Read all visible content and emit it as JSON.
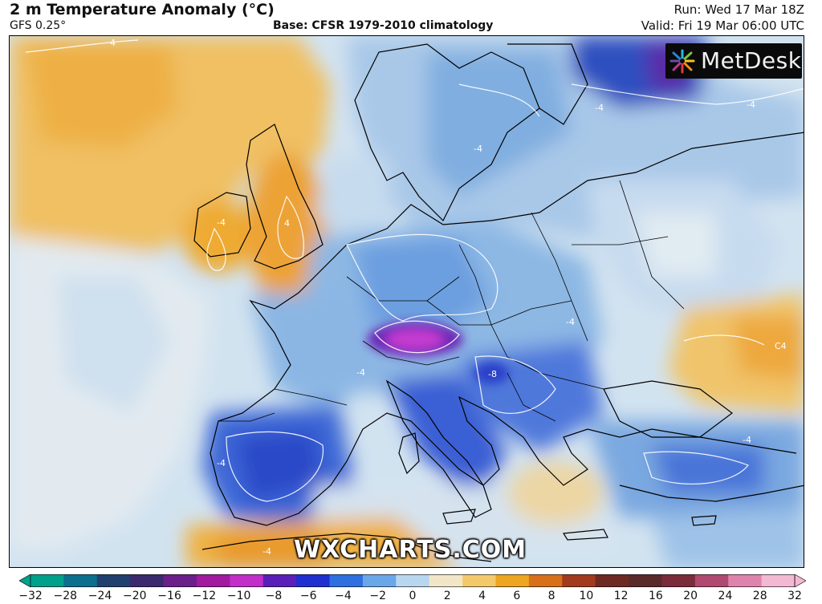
{
  "header": {
    "title": "2 m Temperature Anomaly (°C)",
    "model": "GFS 0.25°",
    "base": "Base: CFSR 1979-2010 climatology",
    "run": "Run: Wed 17 Mar 18Z",
    "valid": "Valid: Fri 19 Mar 06:00 UTC"
  },
  "logo": {
    "text": "MetDesk",
    "icon": "metdesk-burst-icon"
  },
  "watermark": "WXCHARTS.COM",
  "map": {
    "region": "Europe",
    "contour_labels": [
      {
        "text": "4",
        "id": "atlantic-north"
      },
      {
        "text": "-4",
        "id": "ireland"
      },
      {
        "text": "4",
        "id": "britain"
      },
      {
        "text": "-4",
        "id": "scandinavia"
      },
      {
        "text": "-4",
        "id": "finland"
      },
      {
        "text": "-4",
        "id": "baltic-east"
      },
      {
        "text": "-4",
        "id": "alps"
      },
      {
        "text": "-4",
        "id": "balkans"
      },
      {
        "text": "-8",
        "id": "bosnia"
      },
      {
        "text": "-4",
        "id": "iberia"
      },
      {
        "text": "-4",
        "id": "north-africa"
      },
      {
        "text": "-4",
        "id": "turkey"
      },
      {
        "text": "C4",
        "id": "russia-east"
      }
    ]
  },
  "colorbar": {
    "ticks": [
      "−32",
      "−28",
      "−24",
      "−20",
      "−16",
      "−12",
      "−10",
      "−8",
      "−6",
      "−4",
      "−2",
      "0",
      "2",
      "4",
      "6",
      "8",
      "10",
      "12",
      "16",
      "20",
      "24",
      "28",
      "32"
    ],
    "colors": [
      "#00a08a",
      "#0c6f8d",
      "#20406e",
      "#3b2a6e",
      "#6a1f8a",
      "#a11aa0",
      "#c22ec8",
      "#5a1fb8",
      "#1f2fd0",
      "#2f6fe0",
      "#6aa7e8",
      "#b9d6ef",
      "#f1e7c8",
      "#f3c96a",
      "#eea520",
      "#d8701a",
      "#a23a1e",
      "#6e2a22",
      "#5a2a2a",
      "#7a2c3a",
      "#b04a70",
      "#de84ac",
      "#f3b8d2"
    ]
  }
}
